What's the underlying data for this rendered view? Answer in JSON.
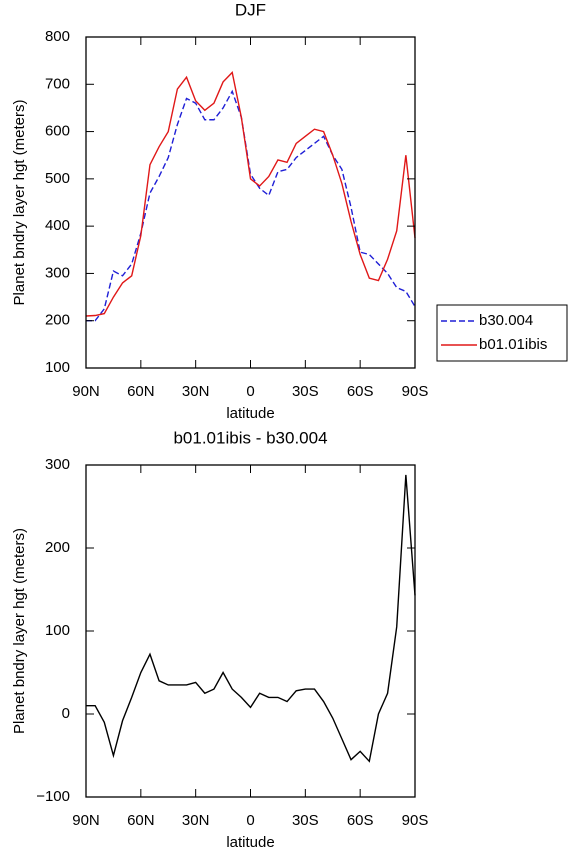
{
  "chart_data": [
    {
      "type": "line",
      "title": "DJF",
      "xlabel": "latitude",
      "ylabel": "Planet bndry layer hgt (meters)",
      "x": [
        90,
        85,
        80,
        75,
        70,
        65,
        60,
        55,
        50,
        45,
        40,
        35,
        30,
        25,
        20,
        15,
        10,
        5,
        0,
        -5,
        -10,
        -15,
        -20,
        -25,
        -30,
        -35,
        -40,
        -45,
        -50,
        -55,
        -60,
        -65,
        -70,
        -75,
        -80,
        -85,
        -90
      ],
      "series": [
        {
          "name": "b30.004",
          "color": "#1f1fd6",
          "line_style": "dashed",
          "values": [
            200,
            200,
            225,
            305,
            295,
            320,
            385,
            470,
            505,
            545,
            615,
            670,
            660,
            625,
            625,
            650,
            685,
            630,
            510,
            480,
            465,
            515,
            520,
            545,
            560,
            575,
            590,
            550,
            520,
            440,
            345,
            340,
            320,
            300,
            270,
            262,
            230
          ]
        },
        {
          "name": "b01.01ibis",
          "color": "#e01818",
          "line_style": "solid",
          "values": [
            210,
            211,
            215,
            250,
            280,
            295,
            380,
            530,
            568,
            600,
            690,
            715,
            665,
            645,
            660,
            705,
            725,
            630,
            500,
            485,
            505,
            540,
            535,
            575,
            590,
            605,
            600,
            550,
            490,
            410,
            340,
            290,
            285,
            330,
            390,
            550,
            375
          ]
        }
      ],
      "xlim": [
        90,
        -90
      ],
      "xticks": [
        {
          "value": 90,
          "label": "90N"
        },
        {
          "value": 60,
          "label": "60N"
        },
        {
          "value": 30,
          "label": "30N"
        },
        0,
        {
          "value": -30,
          "label": "30S"
        },
        {
          "value": -60,
          "label": "60S"
        },
        {
          "value": -90,
          "label": "90S"
        }
      ],
      "ylim": [
        100,
        800
      ],
      "yticks": [
        100,
        200,
        300,
        400,
        500,
        600,
        700,
        800
      ],
      "legend": "right"
    },
    {
      "type": "line",
      "title": "b01.01ibis - b30.004",
      "xlabel": "latitude",
      "ylabel": "Planet bndry layer hgt (meters)",
      "x": [
        90,
        85,
        80,
        75,
        70,
        65,
        60,
        55,
        50,
        45,
        40,
        35,
        30,
        25,
        20,
        15,
        10,
        5,
        0,
        -5,
        -10,
        -15,
        -20,
        -25,
        -30,
        -35,
        -40,
        -45,
        -50,
        -55,
        -60,
        -65,
        -70,
        -75,
        -80,
        -85,
        -90
      ],
      "series": [
        {
          "color": "#000000",
          "line_style": "solid",
          "values": [
            10,
            10,
            -10,
            -50,
            -8,
            20,
            50,
            72,
            40,
            35,
            35,
            35,
            38,
            25,
            30,
            50,
            30,
            20,
            8,
            25,
            20,
            20,
            15,
            28,
            30,
            30,
            15,
            -5,
            -30,
            -55,
            -45,
            -57,
            0,
            25,
            105,
            288,
            143
          ]
        }
      ],
      "xlim": [
        90,
        -90
      ],
      "xticks": [
        {
          "value": 90,
          "label": "90N"
        },
        {
          "value": 60,
          "label": "60N"
        },
        {
          "value": 30,
          "label": "30N"
        },
        0,
        {
          "value": -30,
          "label": "30S"
        },
        {
          "value": -60,
          "label": "60S"
        },
        {
          "value": -90,
          "label": "90S"
        }
      ],
      "ylim": [
        -100,
        300
      ],
      "yticks": [
        {
          "value": -100,
          "label": "−100"
        },
        0,
        100,
        200,
        300
      ]
    }
  ]
}
